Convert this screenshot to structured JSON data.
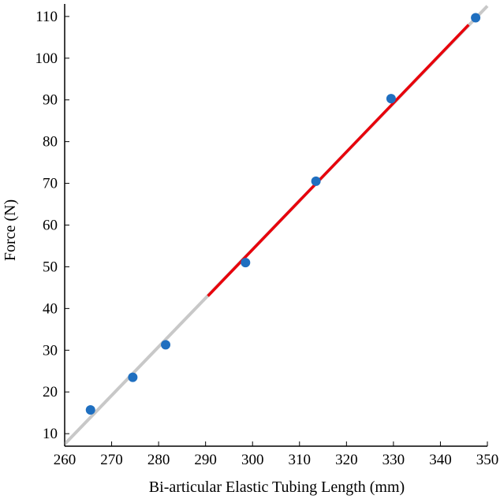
{
  "chart_data": {
    "type": "scatter",
    "title": "",
    "xlabel": "Bi-articular Elastic Tubing Length (mm)",
    "ylabel": "Force (N)",
    "xlim": [
      260,
      350
    ],
    "ylim": [
      7,
      113
    ],
    "x_ticks": [
      260,
      270,
      280,
      290,
      300,
      310,
      320,
      330,
      340,
      350
    ],
    "y_ticks": [
      10,
      20,
      30,
      40,
      50,
      60,
      70,
      80,
      90,
      100,
      110
    ],
    "grid": false,
    "series": [
      {
        "kind": "points",
        "color": "#1f6fc0",
        "x": [
          265.5,
          274.5,
          281.5,
          298.5,
          313.5,
          329.5,
          347.5
        ],
        "y": [
          15.7,
          23.5,
          31.3,
          51.0,
          70.5,
          90.3,
          109.7
        ]
      }
    ],
    "lines": [
      {
        "kind": "fit-line",
        "color": "#c8c8c8",
        "x": [
          260,
          350
        ],
        "y": [
          7.5,
          112.5
        ]
      },
      {
        "kind": "fit-line",
        "color": "#e8000b",
        "x": [
          290.5,
          346
        ],
        "y": [
          43.0,
          108.0
        ]
      }
    ]
  }
}
